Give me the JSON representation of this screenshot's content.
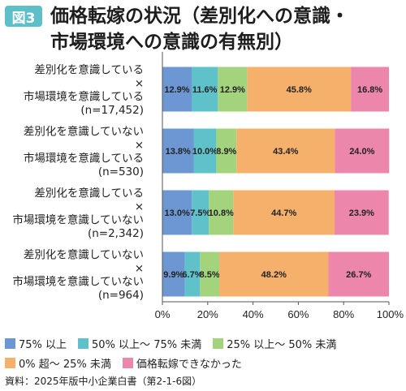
{
  "figure": {
    "badge": "図3",
    "title_line1": "価格転嫁の状況（差別化への意識・",
    "title_line2": "市場環境への意識の有無別）"
  },
  "source": "資料：2025年版中小企業白書（第2-1-6図）",
  "colors": {
    "s1": "#6c97d2",
    "s2": "#5fc2cb",
    "s3": "#a4d37d",
    "s4": "#f5b06c",
    "s5": "#ec86aa"
  },
  "chart_data": {
    "type": "bar",
    "orientation": "horizontal",
    "stacked": true,
    "categories": [
      [
        "差別化を意識している",
        "×",
        "市場環境を意識している",
        "(n=17,452)"
      ],
      [
        "差別化を意識していない",
        "×",
        "市場環境を意識している",
        "(n=530)"
      ],
      [
        "差別化を意識している",
        "×",
        "市場環境を意識していない",
        "(n=2,342)"
      ],
      [
        "差別化を意識していない",
        "×",
        "市場環境を意識していない",
        "(n=964)"
      ]
    ],
    "series": [
      {
        "name": "75% 以上",
        "values": [
          12.9,
          13.8,
          13.0,
          9.9
        ]
      },
      {
        "name": "50% 以上～ 75% 未満",
        "values": [
          11.6,
          10.0,
          7.5,
          6.7
        ]
      },
      {
        "name": "25% 以上～ 50% 未満",
        "values": [
          12.9,
          8.9,
          10.8,
          8.5
        ]
      },
      {
        "name": "0% 超～ 25% 未満",
        "values": [
          45.8,
          43.4,
          44.7,
          48.2
        ]
      },
      {
        "name": "価格転嫁できなかった",
        "values": [
          16.8,
          24.0,
          23.9,
          26.7
        ]
      }
    ],
    "value_labels": [
      [
        "12.9%",
        "11.6%",
        "12.9%",
        "45.8%",
        "16.8%"
      ],
      [
        "13.8%",
        "10.0%",
        "8.9%",
        "43.4%",
        "24.0%"
      ],
      [
        "13.0%",
        "7.5%",
        "10.8%",
        "44.7%",
        "23.9%"
      ],
      [
        "9.9%",
        "6.7%",
        "8.5%",
        "48.2%",
        "26.7%"
      ]
    ],
    "xlim": [
      0,
      100
    ],
    "xticks": [
      "0%",
      "20%",
      "40%",
      "60%",
      "80%",
      "100%"
    ],
    "grid": false,
    "legend_position": "bottom"
  }
}
